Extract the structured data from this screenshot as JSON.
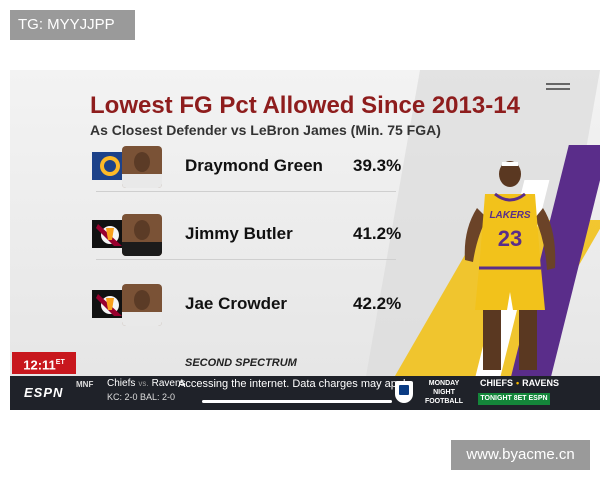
{
  "watermark_top": "TG: MYYJJPP",
  "watermark_bottom": "www.byacme.cn",
  "graphic": {
    "title": "Lowest FG Pct Allowed Since 2013-14",
    "subtitle": "As Closest Defender vs LeBron James (Min. 75 FGA)",
    "rows": [
      {
        "name": "Draymond Green",
        "pct": "39.3%",
        "team": "warriors-logo"
      },
      {
        "name": "Jimmy Butler",
        "pct": "41.2%",
        "team": "heat-logo"
      },
      {
        "name": "Jae Crowder",
        "pct": "42.2%",
        "team": "heat-logo"
      }
    ],
    "featured_player": {
      "team_text": "LAKERS",
      "jersey_number": "23"
    },
    "source": "SECOND SPECTRUM"
  },
  "clock": {
    "time": "12:11",
    "zone": "ET"
  },
  "ticker": {
    "network": "ESPN",
    "league": "MNF",
    "team1": "Chiefs",
    "vs": "vs.",
    "team2": "Ravens",
    "record": "KC: 2-0   BAL: 2-0",
    "notice": "Accessing the internet. Data charges may apply.",
    "program": "MONDAY NIGHT FOOTBALL",
    "matchup_team1": "CHIEFS",
    "matchup_team2": "RAVENS",
    "matchup_sep": "•",
    "airing": "TONIGHT 8ET ESPN"
  },
  "colors": {
    "title": "#8e1d1d",
    "lakers_purple": "#5a2d8a",
    "lakers_gold": "#f2c21b",
    "clock_red": "#c8171d",
    "ticker_bg": "#1f2229"
  }
}
